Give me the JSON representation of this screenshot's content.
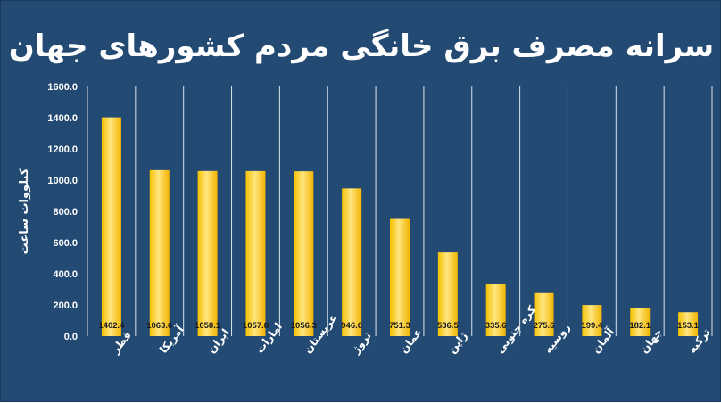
{
  "chart_data": {
    "type": "bar",
    "title": "سرانه مصرف برق خانگی مردم کشورهای جهان",
    "ylabel": "کیلووات ساعت",
    "xlabel": "",
    "ylim": [
      0,
      1600
    ],
    "yticks": [
      "1600.0",
      "1400.0",
      "1200.0",
      "1000.0",
      "800.0",
      "600.0",
      "400.0",
      "200.0",
      "0.0"
    ],
    "ytick_values": [
      1600,
      1400,
      1200,
      1000,
      800,
      600,
      400,
      200,
      0
    ],
    "categories": [
      "قطر",
      "آمریکا",
      "ایران",
      "امارات",
      "عربستان",
      "نروژ",
      "عمان",
      "ژاپن",
      "کره جنوبی",
      "روسیه",
      "آلمان",
      "جهان",
      "ترکیه"
    ],
    "values": [
      1402.4,
      1063.6,
      1058.1,
      1057.8,
      1056.3,
      946.6,
      751.3,
      536.5,
      335.6,
      275.6,
      199.4,
      182.1,
      153.1
    ],
    "value_labels": [
      "1402.4",
      "1063.6",
      "1058.1",
      "1057.8",
      "1056.3",
      "946.6",
      "751.3",
      "536.5",
      "335.6",
      "275.6",
      "199.4",
      "182.1",
      "153.1"
    ],
    "grid": "vertical separators",
    "colors": {
      "background": "#234a73",
      "bar_light": "#ffe066",
      "bar_dark": "#f2b800",
      "text": "#ffffff"
    }
  }
}
